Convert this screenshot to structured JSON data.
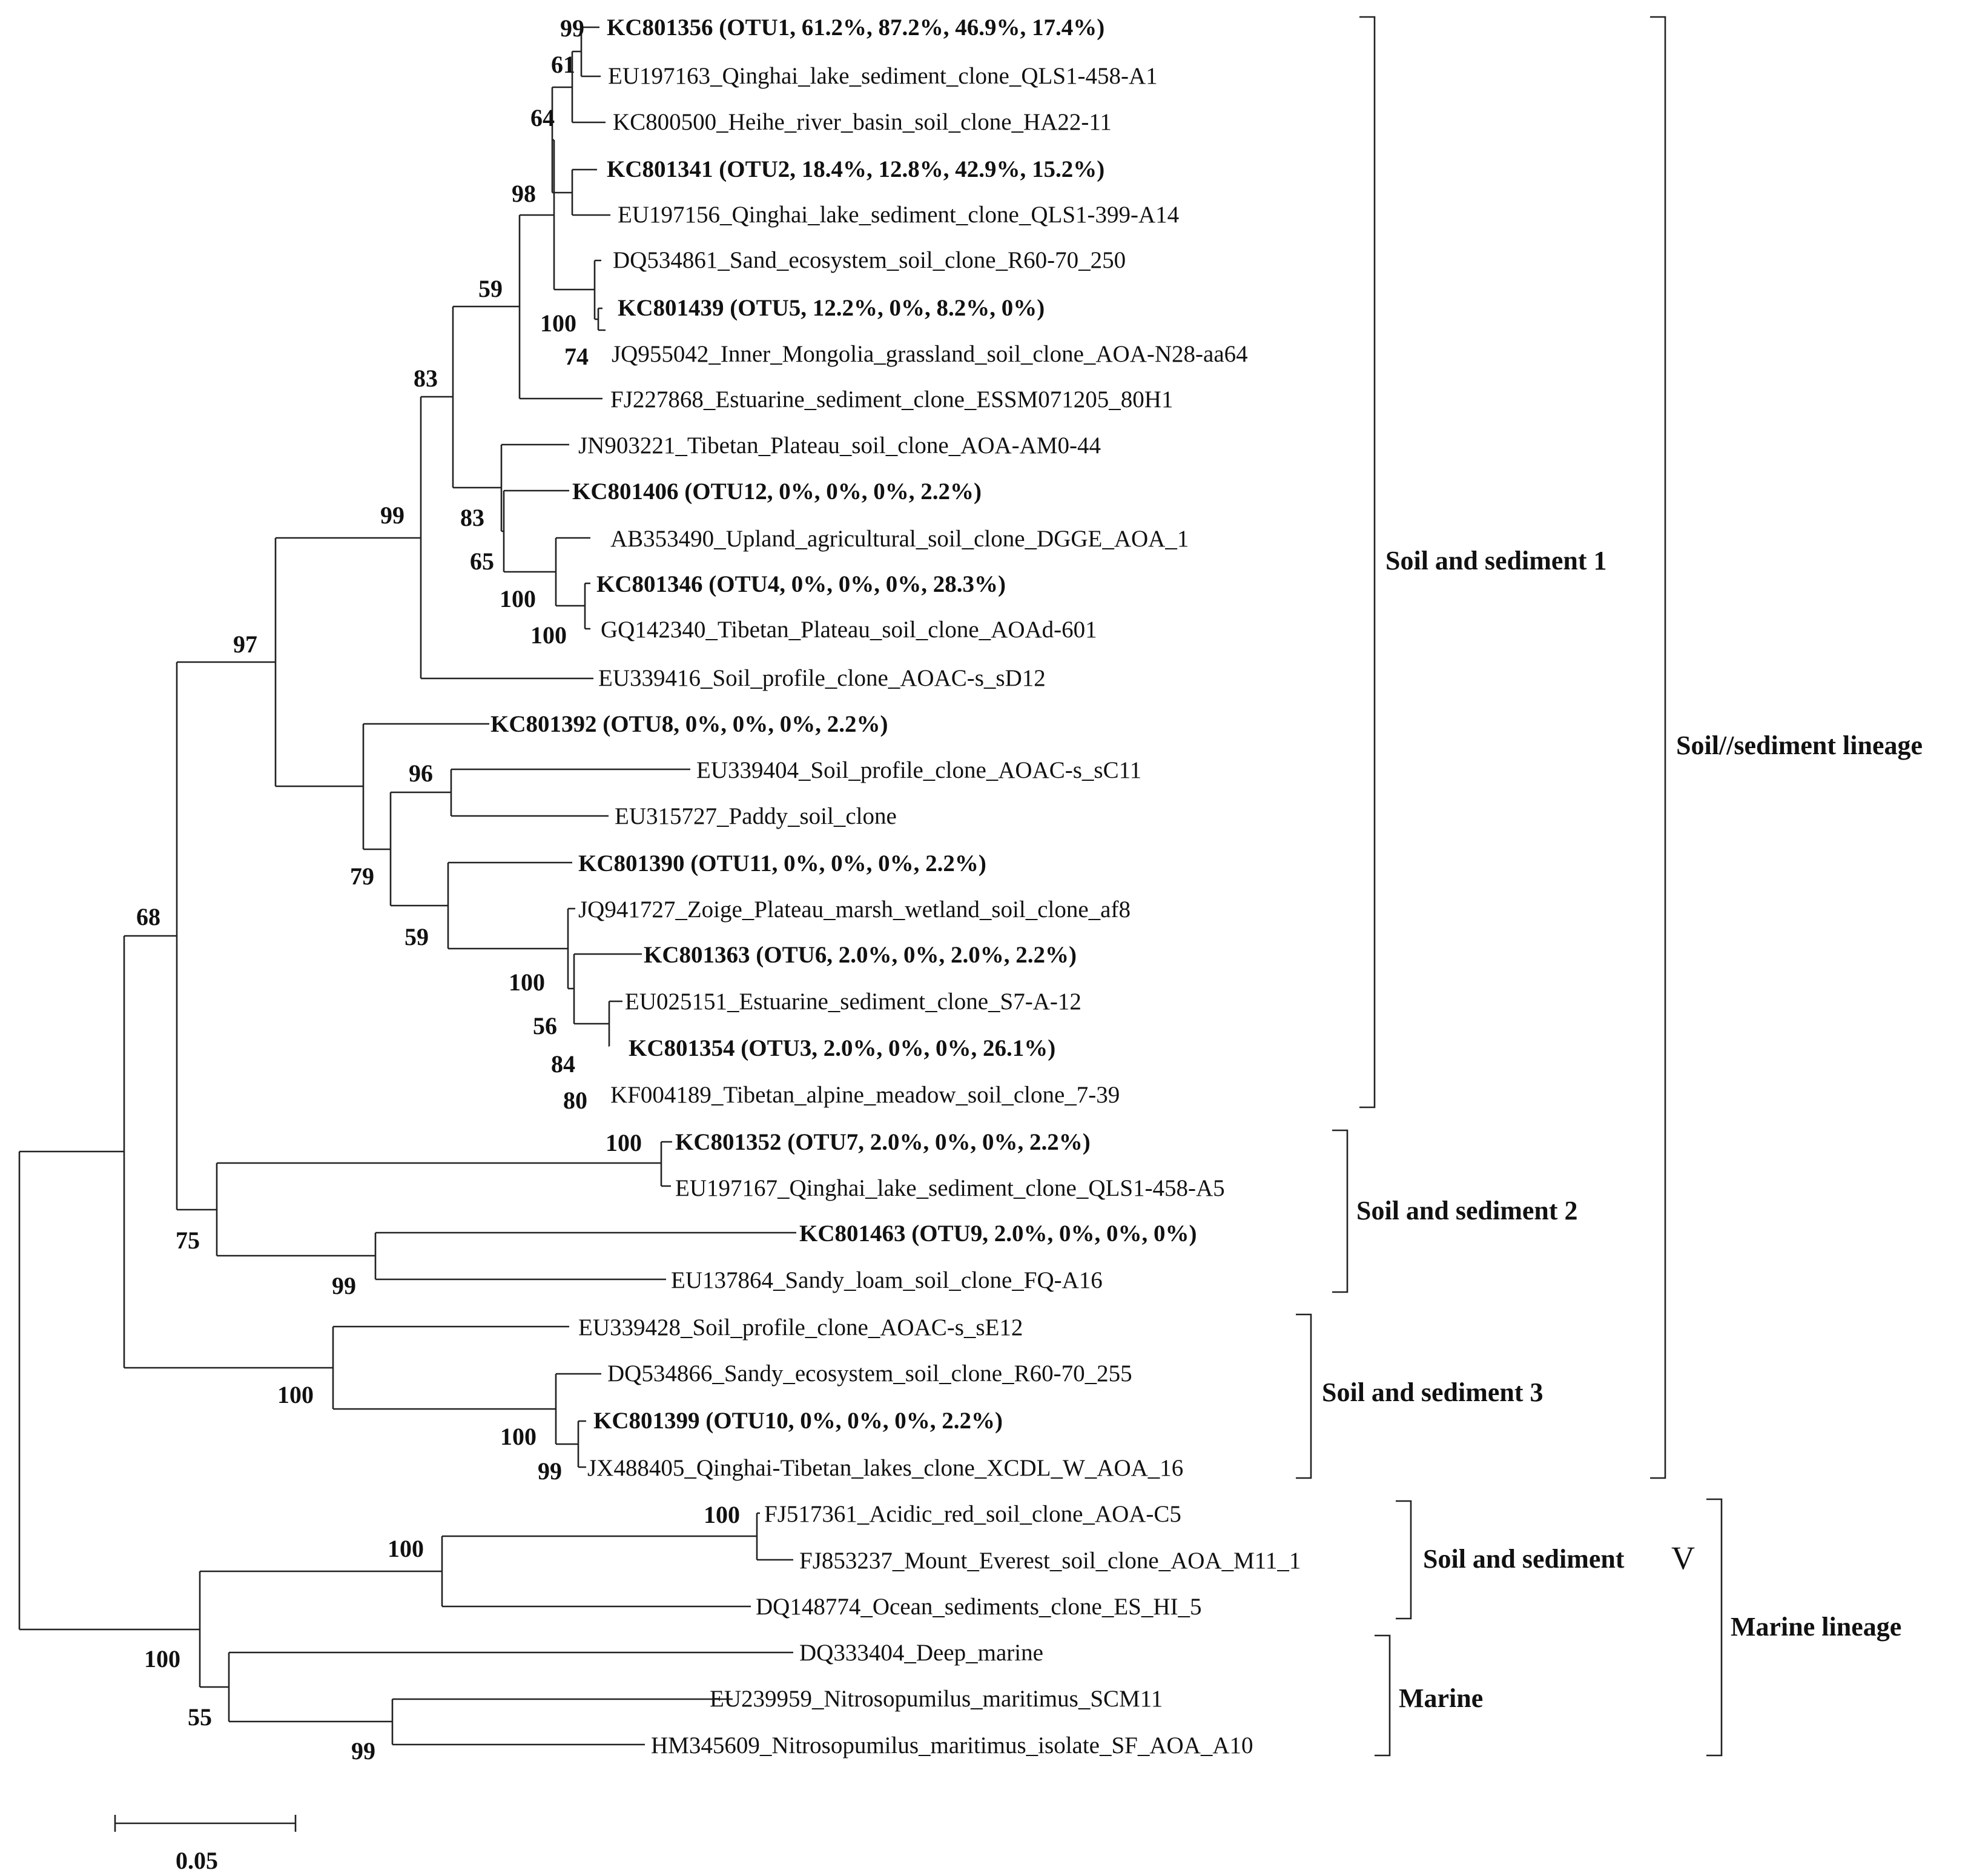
{
  "figure": {
    "type": "phylogenetic tree",
    "branch_color": "#222222",
    "text_color": "#111111",
    "scale_bar": {
      "label": "0.05",
      "value": 0.05
    }
  },
  "leaves": [
    {
      "label": "KC801356 (OTU1, 61.2%, 87.2%, 46.9%, 17.4%)",
      "bold": true
    },
    {
      "label": "EU197163_Qinghai_lake_sediment_clone_QLS1-458-A1",
      "bold": false
    },
    {
      "label": "KC800500_Heihe_river_basin_soil_clone_HA22-11",
      "bold": false
    },
    {
      "label": "KC801341 (OTU2, 18.4%, 12.8%, 42.9%, 15.2%)",
      "bold": true
    },
    {
      "label": "EU197156_Qinghai_lake_sediment_clone_QLS1-399-A14",
      "bold": false
    },
    {
      "label": "DQ534861_Sand_ecosystem_soil_clone_R60-70_250",
      "bold": false
    },
    {
      "label": "KC801439 (OTU5, 12.2%, 0%, 8.2%, 0%)",
      "bold": true
    },
    {
      "label": "JQ955042_Inner_Mongolia_grassland_soil_clone_AOA-N28-aa64",
      "bold": false
    },
    {
      "label": "FJ227868_Estuarine_sediment_clone_ESSM071205_80H1",
      "bold": false
    },
    {
      "label": "JN903221_Tibetan_Plateau_soil_clone_AOA-AM0-44",
      "bold": false
    },
    {
      "label": "KC801406 (OTU12, 0%, 0%, 0%, 2.2%)",
      "bold": true
    },
    {
      "label": "AB353490_Upland_agricultural_soil_clone_DGGE_AOA_1",
      "bold": false
    },
    {
      "label": "KC801346 (OTU4, 0%, 0%, 0%, 28.3%)",
      "bold": true
    },
    {
      "label": "GQ142340_Tibetan_Plateau_soil_clone_AOAd-601",
      "bold": false
    },
    {
      "label": "EU339416_Soil_profile_clone_AOAC-s_sD12",
      "bold": false
    },
    {
      "label": "KC801392 (OTU8, 0%, 0%, 0%, 2.2%)",
      "bold": true
    },
    {
      "label": "EU339404_Soil_profile_clone_AOAC-s_sC11",
      "bold": false
    },
    {
      "label": "EU315727_Paddy_soil_clone",
      "bold": false
    },
    {
      "label": "KC801390 (OTU11, 0%, 0%, 0%, 2.2%)",
      "bold": true
    },
    {
      "label": "JQ941727_Zoige_Plateau_marsh_wetland_soil_clone_af8",
      "bold": false
    },
    {
      "label": "KC801363 (OTU6, 2.0%, 0%, 2.0%, 2.2%)",
      "bold": true
    },
    {
      "label": "EU025151_Estuarine_sediment_clone_S7-A-12",
      "bold": false
    },
    {
      "label": "KC801354 (OTU3, 2.0%, 0%, 0%, 26.1%)",
      "bold": true
    },
    {
      "label": "KF004189_Tibetan_alpine_meadow_soil_clone_7-39",
      "bold": false
    },
    {
      "label": "KC801352 (OTU7, 2.0%, 0%, 0%, 2.2%)",
      "bold": true
    },
    {
      "label": "EU197167_Qinghai_lake_sediment_clone_QLS1-458-A5",
      "bold": false
    },
    {
      "label": "KC801463 (OTU9, 2.0%, 0%, 0%, 0%)",
      "bold": true
    },
    {
      "label": "EU137864_Sandy_loam_soil_clone_FQ-A16",
      "bold": false
    },
    {
      "label": "EU339428_Soil_profile_clone_AOAC-s_sE12",
      "bold": false
    },
    {
      "label": "DQ534866_Sandy_ecosystem_soil_clone_R60-70_255",
      "bold": false
    },
    {
      "label": "KC801399 (OTU10, 0%, 0%, 0%, 2.2%)",
      "bold": true
    },
    {
      "label": "JX488405_Qinghai-Tibetan_lakes_clone_XCDL_W_AOA_16",
      "bold": false
    },
    {
      "label": "FJ517361_Acidic_red_soil_clone_AOA-C5",
      "bold": false
    },
    {
      "label": "FJ853237_Mount_Everest_soil_clone_AOA_M11_1",
      "bold": false
    },
    {
      "label": "DQ148774_Ocean_sediments_clone_ES_HI_5",
      "bold": false
    },
    {
      "label": "DQ333404_Deep_marine",
      "bold": false
    },
    {
      "label": "EU239959_Nitrosopumilus_maritimus_SCM11",
      "bold": false
    },
    {
      "label": "HM345609_Nitrosopumilus_maritimus_isolate_SF_AOA_A10",
      "bold": false
    }
  ],
  "bootstrap": [
    "99",
    "61",
    "64",
    "98",
    "100",
    "74",
    "59",
    "83",
    "83",
    "65",
    "100",
    "100",
    "99",
    "97",
    "96",
    "79",
    "59",
    "100",
    "56",
    "84",
    "80",
    "68",
    "100",
    "75",
    "99",
    "100",
    "100",
    "99",
    "100",
    "100",
    "100",
    "55",
    "99"
  ],
  "clades": {
    "ss1": "Soil and sediment 1",
    "ss2": "Soil and sediment 2",
    "ss3": "Soil and sediment 3",
    "ssv_text": "Soil and sediment",
    "ssv_numeral": "V",
    "marine": "Marine",
    "soil_lineage": "Soil//sediment lineage",
    "marine_lineage": "Marine lineage"
  }
}
